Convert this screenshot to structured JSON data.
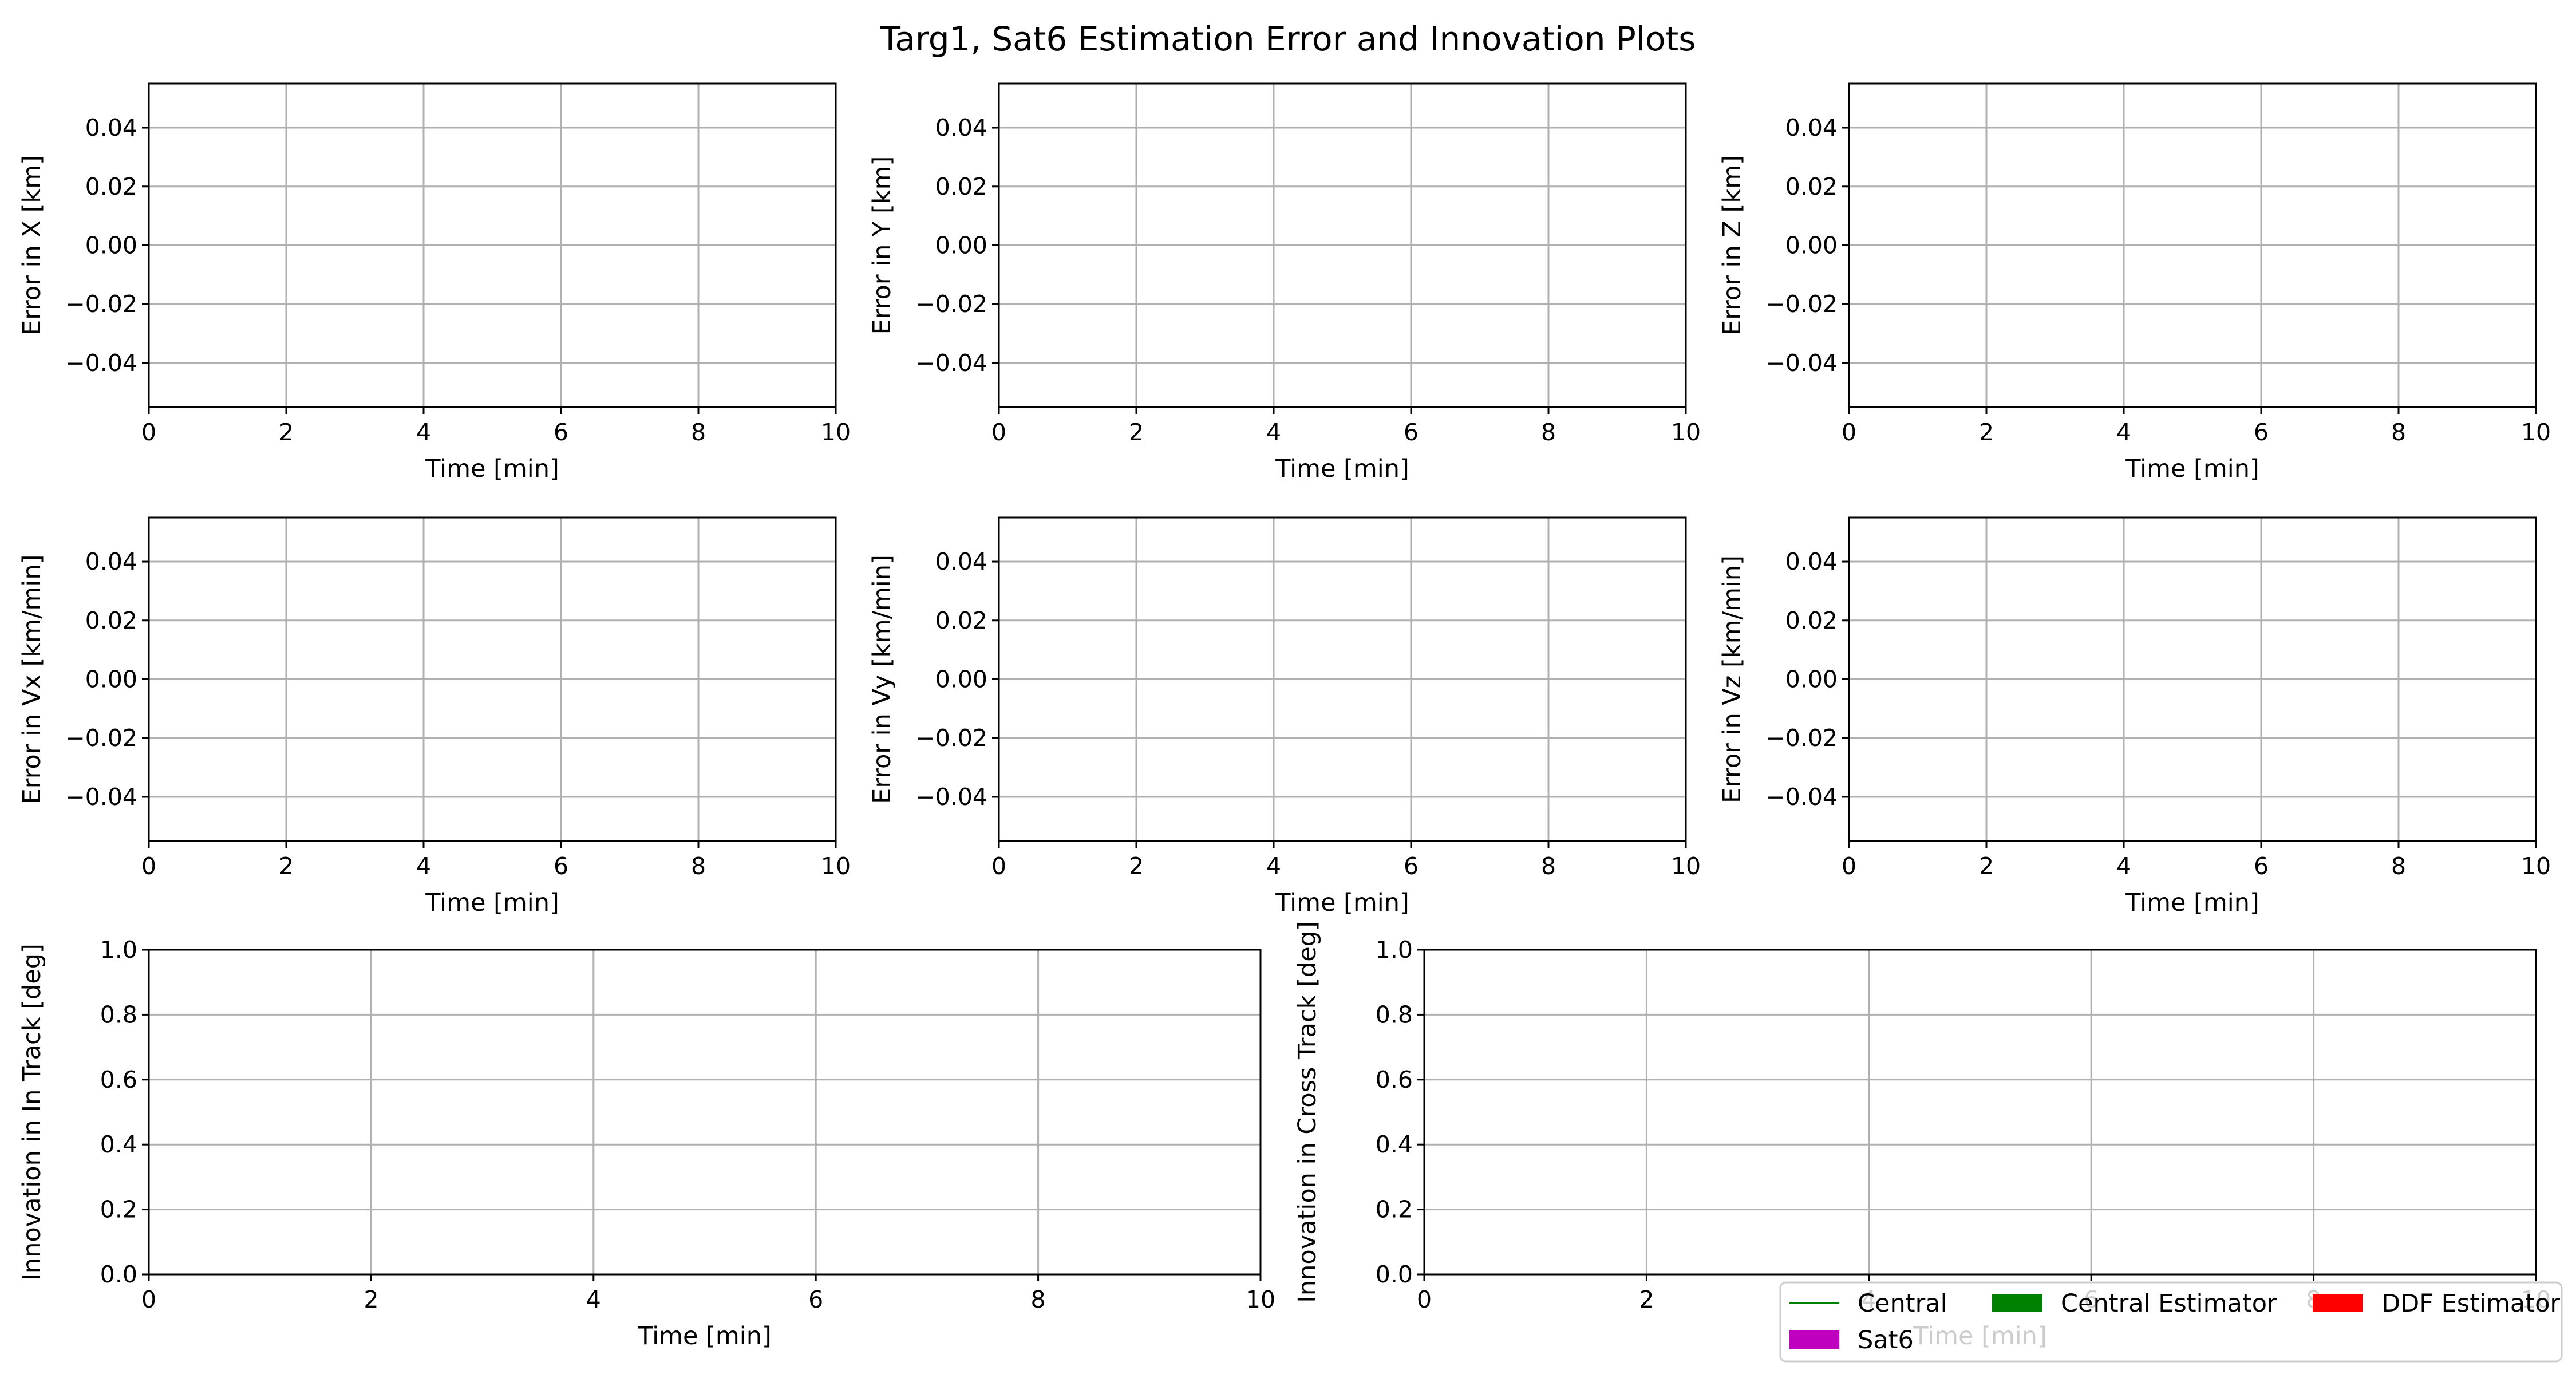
{
  "chart_data": {
    "title": "Targ1, Sat6 Estimation Error and Innovation Plots",
    "subplots": [
      {
        "type": "line",
        "xlabel": "Time [min]",
        "ylabel": "Error in X [km]",
        "xlim": [
          0,
          10
        ],
        "ylim": [
          -0.055,
          0.055
        ],
        "xticks": [
          0,
          2,
          4,
          6,
          8,
          10
        ],
        "xtick_labels": [
          "0",
          "2",
          "4",
          "6",
          "8",
          "10"
        ],
        "yticks": [
          -0.04,
          -0.02,
          0,
          0.02,
          0.04
        ],
        "ytick_labels": [
          "−0.04",
          "−0.02",
          "0.00",
          "0.02",
          "0.04"
        ],
        "grid": true,
        "series": []
      },
      {
        "type": "line",
        "xlabel": "Time [min]",
        "ylabel": "Error in Y [km]",
        "xlim": [
          0,
          10
        ],
        "ylim": [
          -0.055,
          0.055
        ],
        "xticks": [
          0,
          2,
          4,
          6,
          8,
          10
        ],
        "xtick_labels": [
          "0",
          "2",
          "4",
          "6",
          "8",
          "10"
        ],
        "yticks": [
          -0.04,
          -0.02,
          0,
          0.02,
          0.04
        ],
        "ytick_labels": [
          "−0.04",
          "−0.02",
          "0.00",
          "0.02",
          "0.04"
        ],
        "grid": true,
        "series": []
      },
      {
        "type": "line",
        "xlabel": "Time [min]",
        "ylabel": "Error in Z [km]",
        "xlim": [
          0,
          10
        ],
        "ylim": [
          -0.055,
          0.055
        ],
        "xticks": [
          0,
          2,
          4,
          6,
          8,
          10
        ],
        "xtick_labels": [
          "0",
          "2",
          "4",
          "6",
          "8",
          "10"
        ],
        "yticks": [
          -0.04,
          -0.02,
          0,
          0.02,
          0.04
        ],
        "ytick_labels": [
          "−0.04",
          "−0.02",
          "0.00",
          "0.02",
          "0.04"
        ],
        "grid": true,
        "series": []
      },
      {
        "type": "line",
        "xlabel": "Time [min]",
        "ylabel": "Error in Vx [km/min]",
        "xlim": [
          0,
          10
        ],
        "ylim": [
          -0.055,
          0.055
        ],
        "xticks": [
          0,
          2,
          4,
          6,
          8,
          10
        ],
        "xtick_labels": [
          "0",
          "2",
          "4",
          "6",
          "8",
          "10"
        ],
        "yticks": [
          -0.04,
          -0.02,
          0,
          0.02,
          0.04
        ],
        "ytick_labels": [
          "−0.04",
          "−0.02",
          "0.00",
          "0.02",
          "0.04"
        ],
        "grid": true,
        "series": []
      },
      {
        "type": "line",
        "xlabel": "Time [min]",
        "ylabel": "Error in Vy [km/min]",
        "xlim": [
          0,
          10
        ],
        "ylim": [
          -0.055,
          0.055
        ],
        "xticks": [
          0,
          2,
          4,
          6,
          8,
          10
        ],
        "xtick_labels": [
          "0",
          "2",
          "4",
          "6",
          "8",
          "10"
        ],
        "yticks": [
          -0.04,
          -0.02,
          0,
          0.02,
          0.04
        ],
        "ytick_labels": [
          "−0.04",
          "−0.02",
          "0.00",
          "0.02",
          "0.04"
        ],
        "grid": true,
        "series": []
      },
      {
        "type": "line",
        "xlabel": "Time [min]",
        "ylabel": "Error in Vz [km/min]",
        "xlim": [
          0,
          10
        ],
        "ylim": [
          -0.055,
          0.055
        ],
        "xticks": [
          0,
          2,
          4,
          6,
          8,
          10
        ],
        "xtick_labels": [
          "0",
          "2",
          "4",
          "6",
          "8",
          "10"
        ],
        "yticks": [
          -0.04,
          -0.02,
          0,
          0.02,
          0.04
        ],
        "ytick_labels": [
          "−0.04",
          "−0.02",
          "0.00",
          "0.02",
          "0.04"
        ],
        "grid": true,
        "series": []
      },
      {
        "type": "line",
        "xlabel": "Time [min]",
        "ylabel": "Innovation in In Track [deg]",
        "xlim": [
          0,
          10
        ],
        "ylim": [
          0,
          1
        ],
        "xticks": [
          0,
          2,
          4,
          6,
          8,
          10
        ],
        "xtick_labels": [
          "0",
          "2",
          "4",
          "6",
          "8",
          "10"
        ],
        "yticks": [
          0,
          0.2,
          0.4,
          0.6,
          0.8,
          1.0
        ],
        "ytick_labels": [
          "0.0",
          "0.2",
          "0.4",
          "0.6",
          "0.8",
          "1.0"
        ],
        "grid": true,
        "series": []
      },
      {
        "type": "line",
        "xlabel": "Time [min]",
        "ylabel": "Innovation in Cross Track [deg]",
        "xlim": [
          0,
          10
        ],
        "ylim": [
          0,
          1
        ],
        "xticks": [
          0,
          2,
          4,
          6,
          8,
          10
        ],
        "xtick_labels": [
          "0",
          "2",
          "4",
          "6",
          "8",
          "10"
        ],
        "yticks": [
          0,
          0.2,
          0.4,
          0.6,
          0.8,
          1.0
        ],
        "ytick_labels": [
          "0.0",
          "0.2",
          "0.4",
          "0.6",
          "0.8",
          "1.0"
        ],
        "grid": true,
        "series": []
      }
    ],
    "legend": {
      "placement": "lower-right",
      "entries": [
        {
          "label": "Central",
          "kind": "line",
          "color": "#008000"
        },
        {
          "label": "Central Estimator",
          "kind": "patch",
          "color": "#008000"
        },
        {
          "label": "DDF Estimator",
          "kind": "patch",
          "color": "#ff0000"
        },
        {
          "label": "Sat6",
          "kind": "patch",
          "color": "#bf00bf"
        }
      ]
    }
  }
}
